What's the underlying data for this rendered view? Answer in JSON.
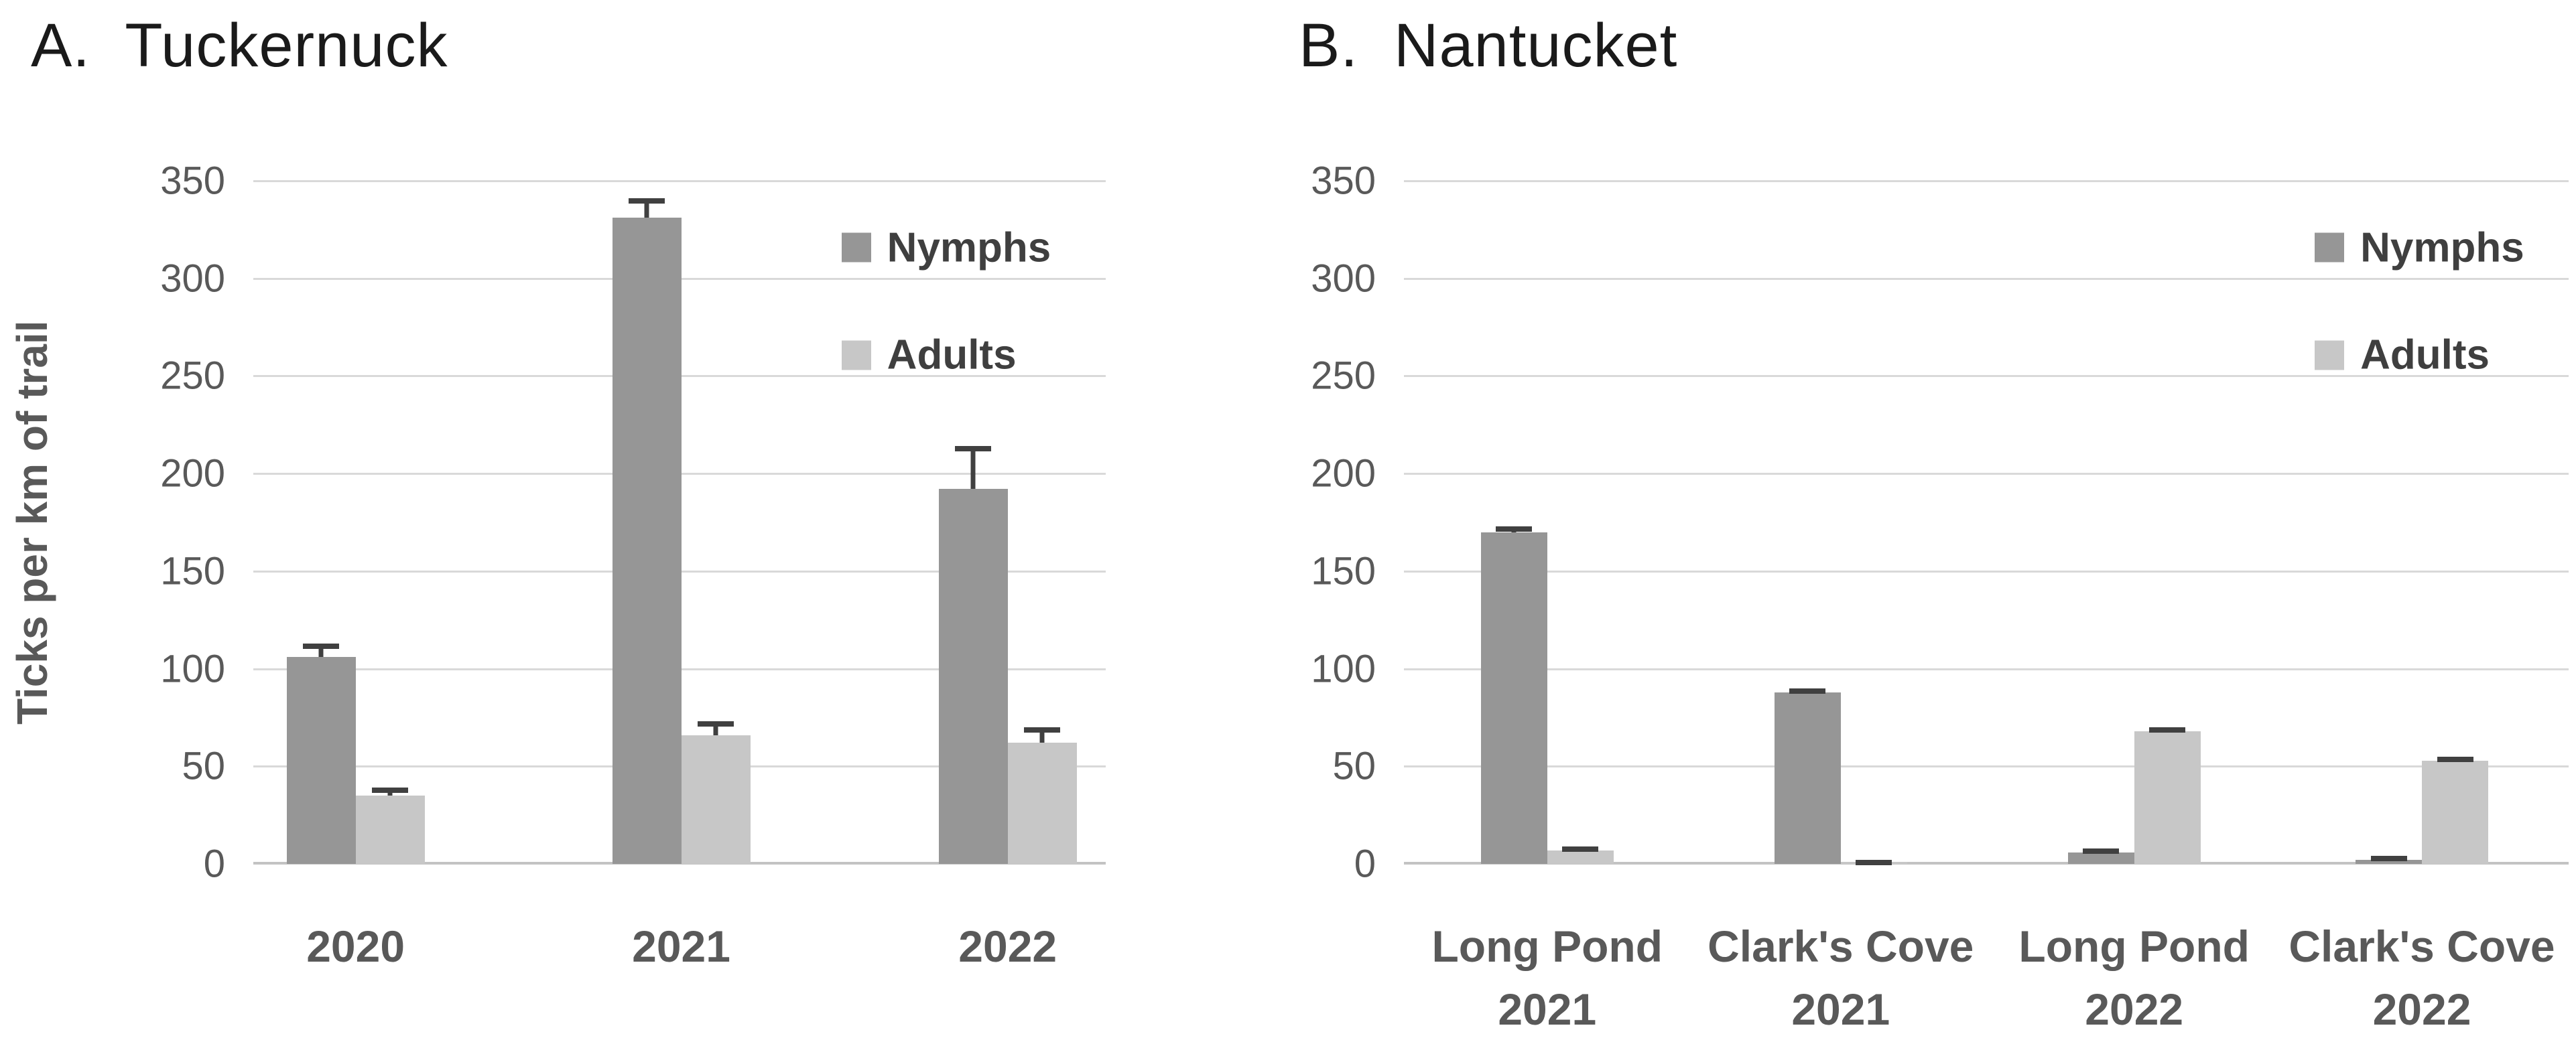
{
  "figure": {
    "background": "#ffffff"
  },
  "colors": {
    "nymphs_bar": "#969696",
    "adults_bar": "#c7c7c7",
    "error_bar": "#404040",
    "gridline": "#d9d9d9",
    "axis_line": "#c3c3c3",
    "tick_text": "#595959",
    "category_text": "#595959",
    "title_text": "#1a1a1a",
    "legend_text": "#3f3f3f"
  },
  "chart_data": [
    {
      "type": "bar",
      "panel_label": "A.  Tuckernuck",
      "ylabel": "Ticks per km of trail",
      "ylim": [
        0,
        350
      ],
      "ytick_step": 50,
      "grid": true,
      "legend_position": "inside top-right",
      "legend_entries": [
        "Nymphs",
        "Adults"
      ],
      "categories": [
        [
          "2020"
        ],
        [
          "2021"
        ],
        [
          "2022"
        ]
      ],
      "series": [
        {
          "name": "Nymphs",
          "color": "#969696",
          "values": [
            106,
            331,
            192
          ],
          "error_plus": [
            7,
            10,
            22
          ]
        },
        {
          "name": "Adults",
          "color": "#c7c7c7",
          "values": [
            35,
            66,
            62
          ],
          "error_plus": [
            4,
            7,
            8
          ]
        }
      ]
    },
    {
      "type": "bar",
      "panel_label": "B.  Nantucket",
      "ylabel": "",
      "ylim": [
        0,
        350
      ],
      "ytick_step": 50,
      "grid": true,
      "legend_position": "inside top-right",
      "legend_entries": [
        "Nymphs",
        "Adults"
      ],
      "categories": [
        [
          "Long Pond",
          "2021"
        ],
        [
          "Clark's Cove",
          "2021"
        ],
        [
          "Long Pond",
          "2022"
        ],
        [
          "Clark's Cove",
          "2022"
        ]
      ],
      "series": [
        {
          "name": "Nymphs",
          "color": "#969696",
          "values": [
            170,
            88,
            6,
            2
          ],
          "error_plus": [
            3,
            2,
            2,
            2
          ]
        },
        {
          "name": "Adults",
          "color": "#c7c7c7",
          "values": [
            7,
            1,
            68,
            53
          ],
          "error_plus": [
            2,
            1,
            2,
            2
          ]
        }
      ]
    }
  ]
}
